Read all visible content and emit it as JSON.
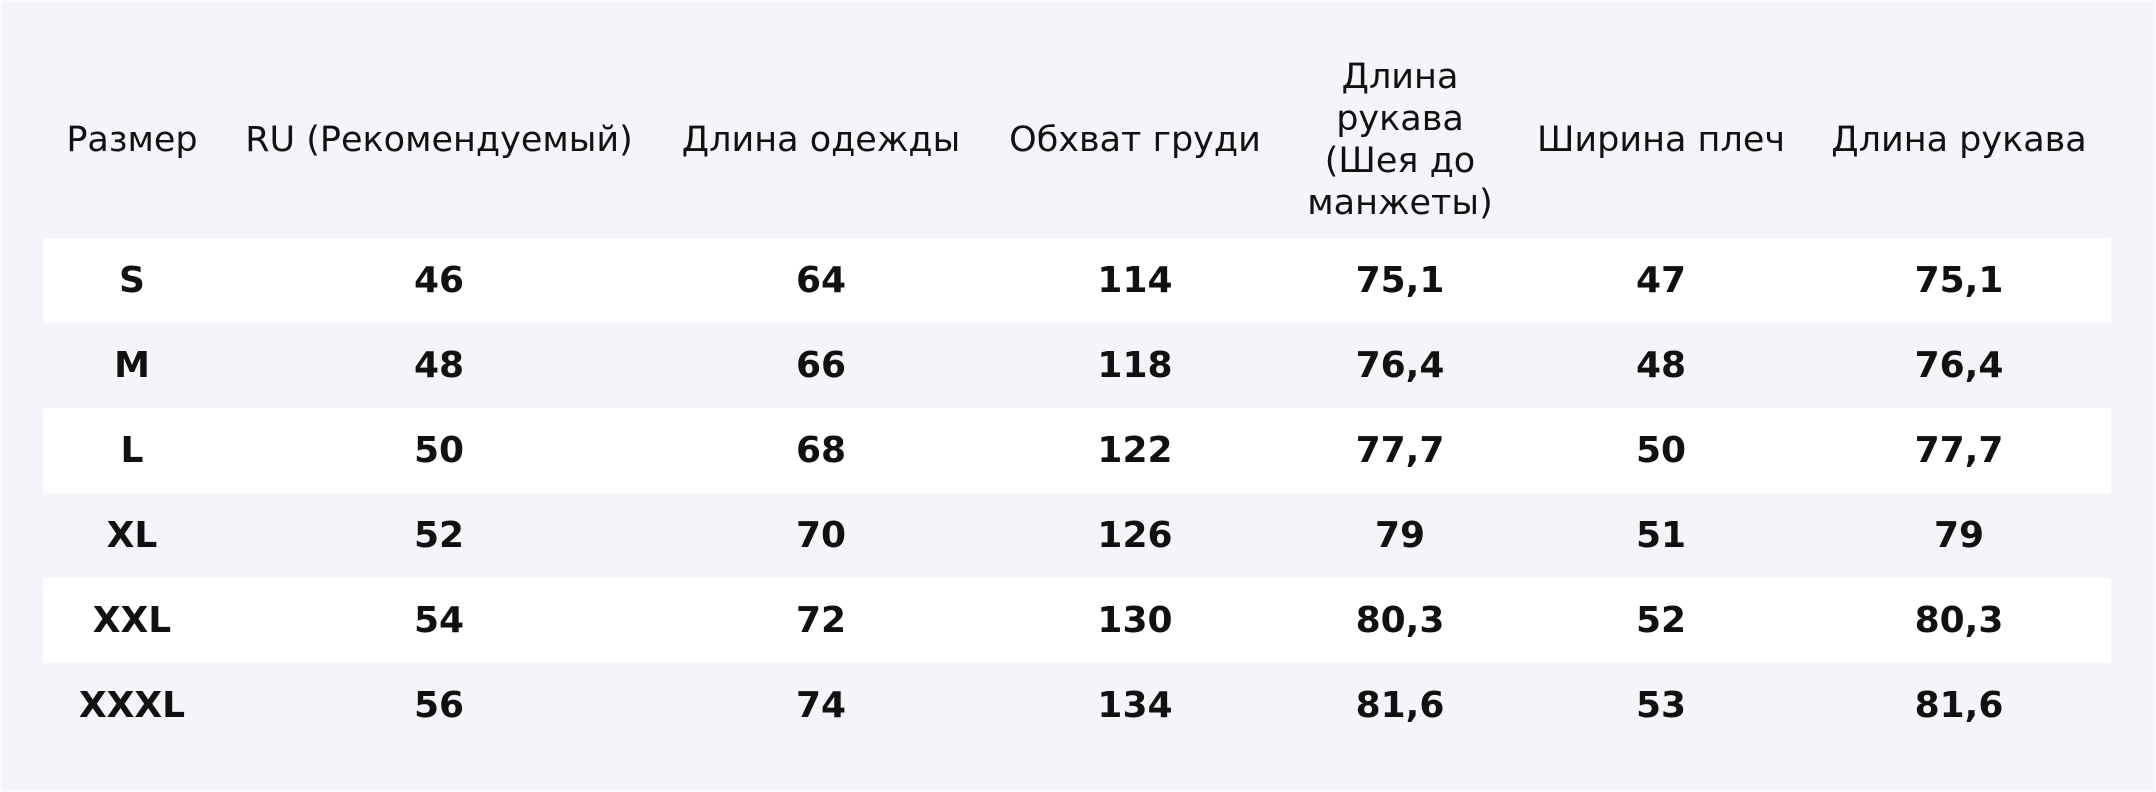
{
  "table": {
    "header": [
      "Размер",
      "RU (Рекомендуемый)",
      "Длина одежды",
      "Обхват груди",
      "Длина рукава (Шея до манжеты)",
      "Ширина плеч",
      "Длина рукава"
    ],
    "rows": [
      [
        "S",
        "46",
        "64",
        "114",
        "75,1",
        "47",
        "75,1"
      ],
      [
        "M",
        "48",
        "66",
        "118",
        "76,4",
        "48",
        "76,4"
      ],
      [
        "L",
        "50",
        "68",
        "122",
        "77,7",
        "50",
        "77,7"
      ],
      [
        "XL",
        "52",
        "70",
        "126",
        "79",
        "51",
        "79"
      ],
      [
        "XXL",
        "54",
        "72",
        "130",
        "80,3",
        "52",
        "80,3"
      ],
      [
        "XXXL",
        "56",
        "74",
        "134",
        "81,6",
        "53",
        "81,6"
      ]
    ]
  }
}
